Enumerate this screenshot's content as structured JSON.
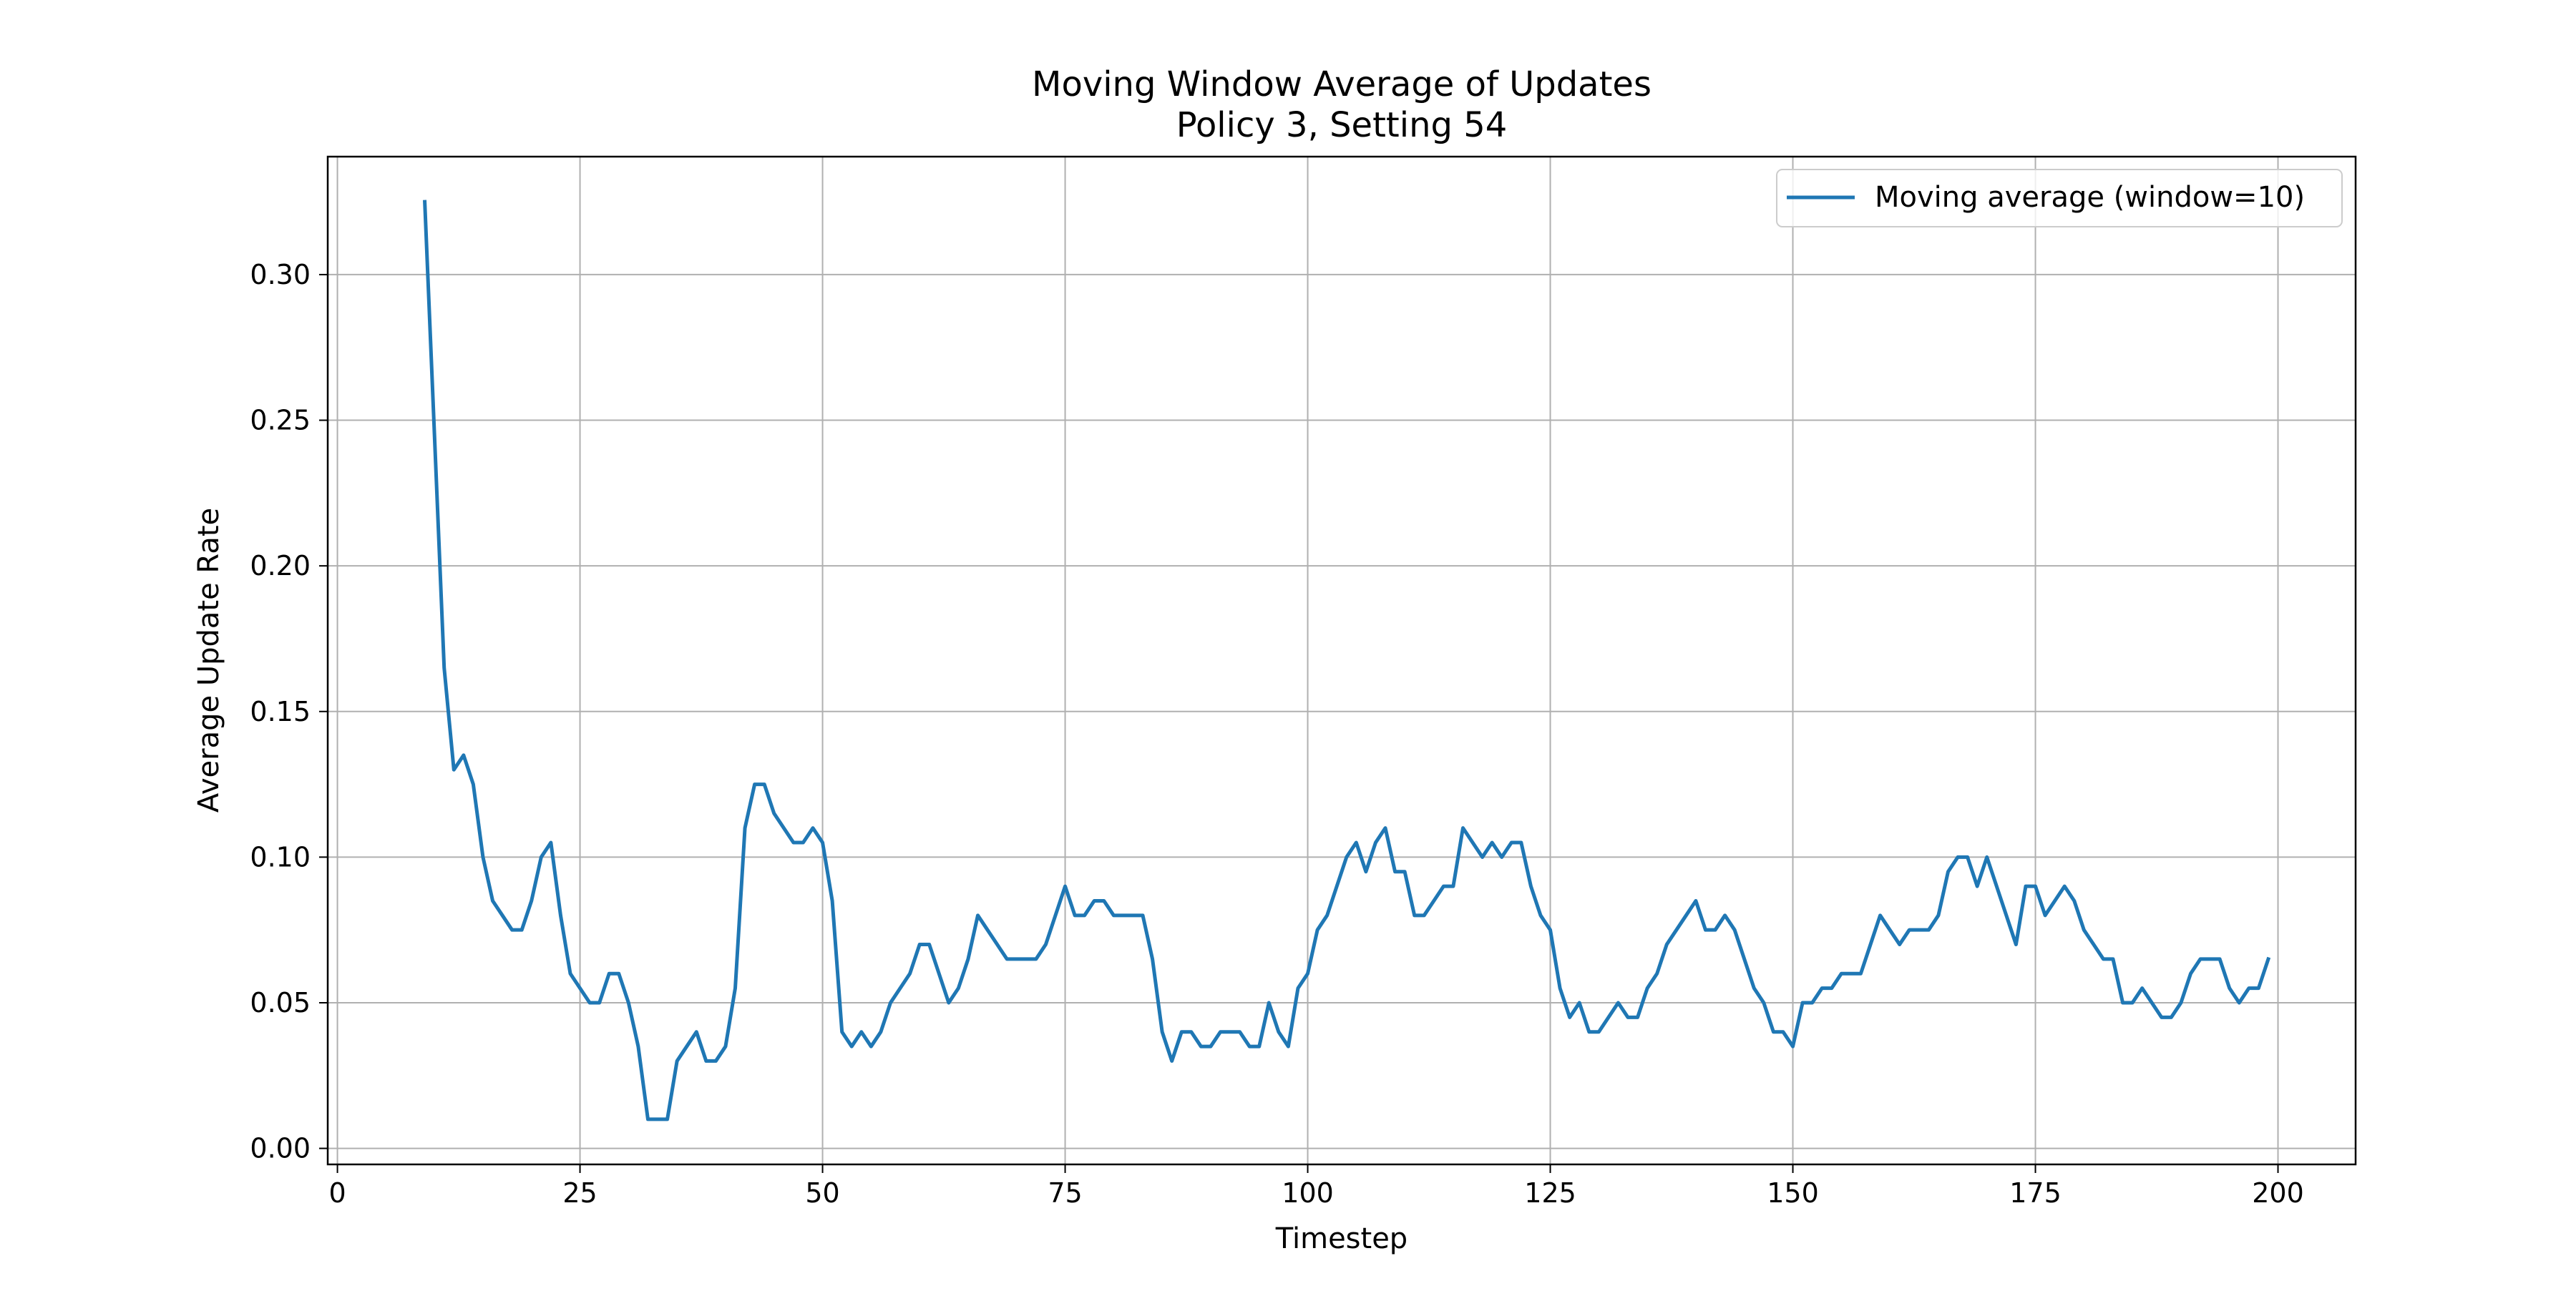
{
  "chart_data": {
    "type": "line",
    "title": "Moving Window Average of Updates",
    "subtitle": "Policy 3, Setting 54",
    "xlabel": "Timestep",
    "ylabel": "Average Update Rate",
    "xlim": [
      -1,
      208
    ],
    "ylim": [
      -0.0055,
      0.3405
    ],
    "x_ticks": [
      0,
      25,
      50,
      75,
      100,
      125,
      150,
      175,
      200
    ],
    "y_ticks": [
      0.0,
      0.05,
      0.1,
      0.15,
      0.2,
      0.25,
      0.3
    ],
    "x_tick_labels": [
      "0",
      "25",
      "50",
      "75",
      "100",
      "125",
      "150",
      "175",
      "200"
    ],
    "y_tick_labels": [
      "0.00",
      "0.05",
      "0.10",
      "0.15",
      "0.20",
      "0.25",
      "0.30"
    ],
    "grid": true,
    "legend_position": "top-right",
    "series": [
      {
        "name": "Moving average (window=10)",
        "color": "#1f77b4",
        "x": [
          9,
          10,
          11,
          12,
          13,
          14,
          15,
          16,
          17,
          18,
          19,
          20,
          21,
          22,
          23,
          24,
          25,
          26,
          27,
          28,
          29,
          30,
          31,
          32,
          33,
          34,
          35,
          36,
          37,
          38,
          39,
          40,
          41,
          42,
          43,
          44,
          45,
          46,
          47,
          48,
          49,
          50,
          51,
          52,
          53,
          54,
          55,
          56,
          57,
          58,
          59,
          60,
          61,
          62,
          63,
          64,
          65,
          66,
          67,
          68,
          69,
          70,
          71,
          72,
          73,
          74,
          75,
          76,
          77,
          78,
          79,
          80,
          81,
          82,
          83,
          84,
          85,
          86,
          87,
          88,
          89,
          90,
          91,
          92,
          93,
          94,
          95,
          96,
          97,
          98,
          99,
          100,
          101,
          102,
          103,
          104,
          105,
          106,
          107,
          108,
          109,
          110,
          111,
          112,
          113,
          114,
          115,
          116,
          117,
          118,
          119,
          120,
          121,
          122,
          123,
          124,
          125,
          126,
          127,
          128,
          129,
          130,
          131,
          132,
          133,
          134,
          135,
          136,
          137,
          138,
          139,
          140,
          141,
          142,
          143,
          144,
          145,
          146,
          147,
          148,
          149,
          150,
          151,
          152,
          153,
          154,
          155,
          156,
          157,
          158,
          159,
          160,
          161,
          162,
          163,
          164,
          165,
          166,
          167,
          168,
          169,
          170,
          171,
          172,
          173,
          174,
          175,
          176,
          177,
          178,
          179,
          180,
          181,
          182,
          183,
          184,
          185,
          186,
          187,
          188,
          189,
          190,
          191,
          192,
          193,
          194,
          195,
          196,
          197,
          198,
          199
        ],
        "y": [
          0.325,
          0.245,
          0.165,
          0.13,
          0.135,
          0.125,
          0.1,
          0.085,
          0.08,
          0.075,
          0.075,
          0.085,
          0.1,
          0.105,
          0.08,
          0.06,
          0.055,
          0.05,
          0.05,
          0.06,
          0.06,
          0.05,
          0.035,
          0.01,
          0.01,
          0.01,
          0.03,
          0.035,
          0.04,
          0.03,
          0.03,
          0.035,
          0.055,
          0.11,
          0.125,
          0.125,
          0.115,
          0.11,
          0.105,
          0.105,
          0.11,
          0.105,
          0.085,
          0.04,
          0.035,
          0.04,
          0.035,
          0.04,
          0.05,
          0.055,
          0.06,
          0.07,
          0.07,
          0.06,
          0.05,
          0.055,
          0.065,
          0.08,
          0.075,
          0.07,
          0.065,
          0.065,
          0.065,
          0.065,
          0.07,
          0.08,
          0.09,
          0.08,
          0.08,
          0.085,
          0.085,
          0.08,
          0.08,
          0.08,
          0.08,
          0.065,
          0.04,
          0.03,
          0.04,
          0.04,
          0.035,
          0.035,
          0.04,
          0.04,
          0.04,
          0.035,
          0.035,
          0.05,
          0.04,
          0.035,
          0.055,
          0.06,
          0.075,
          0.08,
          0.09,
          0.1,
          0.105,
          0.095,
          0.105,
          0.11,
          0.095,
          0.095,
          0.08,
          0.08,
          0.085,
          0.09,
          0.09,
          0.11,
          0.105,
          0.1,
          0.105,
          0.1,
          0.105,
          0.105,
          0.09,
          0.08,
          0.075,
          0.055,
          0.045,
          0.05,
          0.04,
          0.04,
          0.045,
          0.05,
          0.045,
          0.045,
          0.055,
          0.06,
          0.07,
          0.075,
          0.08,
          0.085,
          0.075,
          0.075,
          0.08,
          0.075,
          0.065,
          0.055,
          0.05,
          0.04,
          0.04,
          0.035,
          0.05,
          0.05,
          0.055,
          0.055,
          0.06,
          0.06,
          0.06,
          0.07,
          0.08,
          0.075,
          0.07,
          0.075,
          0.075,
          0.075,
          0.08,
          0.095,
          0.1,
          0.1,
          0.09,
          0.1,
          0.09,
          0.08,
          0.07,
          0.09,
          0.09,
          0.08,
          0.085,
          0.09,
          0.085,
          0.075,
          0.07,
          0.065,
          0.065,
          0.05,
          0.05,
          0.055,
          0.05,
          0.045,
          0.045,
          0.05,
          0.06,
          0.065,
          0.065,
          0.065,
          0.055,
          0.05,
          0.055,
          0.055,
          0.065
        ]
      }
    ]
  }
}
